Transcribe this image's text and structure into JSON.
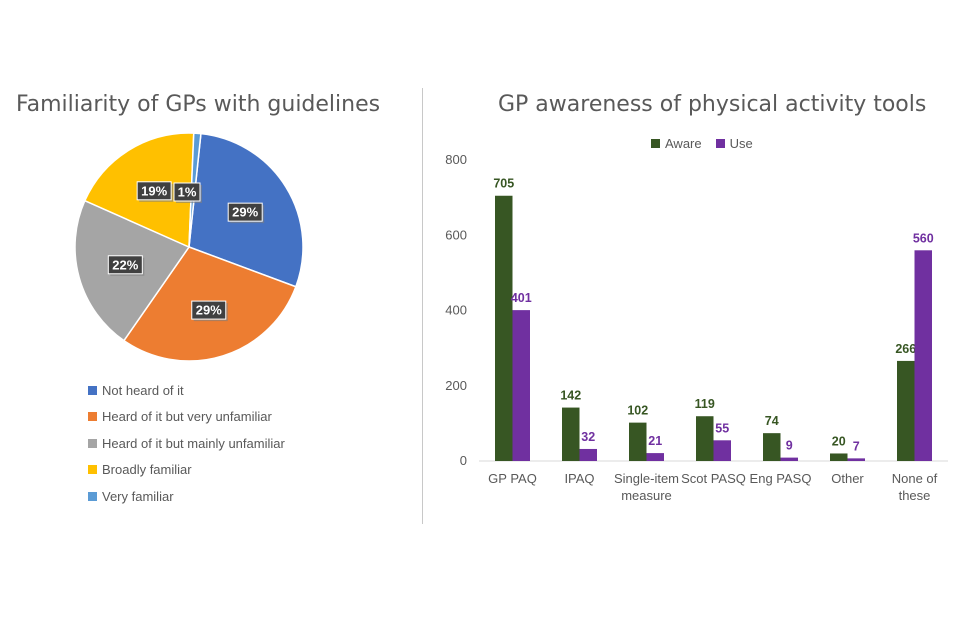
{
  "pie_title": "Familiarity of GPs with guidelines",
  "bar_title": "GP awareness of physical activity tools",
  "chart_data": [
    {
      "type": "pie",
      "title": "Familiarity of GPs with guidelines",
      "legend_position": "bottom",
      "slices": [
        {
          "label": "Not heard of it",
          "value": 29,
          "display": "29%",
          "color": "#4472C4"
        },
        {
          "label": "Heard of it but very unfamiliar",
          "value": 29,
          "display": "29%",
          "color": "#ED7D31"
        },
        {
          "label": "Heard of it but mainly unfamiliar",
          "value": 22,
          "display": "22%",
          "color": "#A5A5A5"
        },
        {
          "label": "Broadly familiar",
          "value": 19,
          "display": "19%",
          "color": "#FFC000"
        },
        {
          "label": "Very familiar",
          "value": 1,
          "display": "1%",
          "color": "#5B9BD5"
        }
      ]
    },
    {
      "type": "bar",
      "title": "GP awareness of physical activity tools",
      "legend_position": "top",
      "grid": false,
      "categories": [
        [
          "GP PAQ"
        ],
        [
          "IPAQ"
        ],
        [
          "Single-item",
          "measure"
        ],
        [
          "Scot PASQ"
        ],
        [
          "Eng PASQ"
        ],
        [
          "Other"
        ],
        [
          "None of",
          "these"
        ]
      ],
      "ylim": [
        0,
        800
      ],
      "yticks": [
        "0",
        "200",
        "400",
        "600",
        "800"
      ],
      "series": [
        {
          "name": "Aware",
          "color": "#375623",
          "values": [
            705,
            142,
            102,
            119,
            74,
            20,
            266
          ],
          "labels": [
            "705",
            "142",
            "102",
            "119",
            "74",
            "20",
            "266"
          ]
        },
        {
          "name": "Use",
          "color": "#7030A0",
          "values": [
            401,
            32,
            21,
            55,
            9,
            7,
            560
          ],
          "labels": [
            "401",
            "32",
            "21",
            "55",
            "9",
            "7",
            "560"
          ]
        }
      ]
    }
  ]
}
